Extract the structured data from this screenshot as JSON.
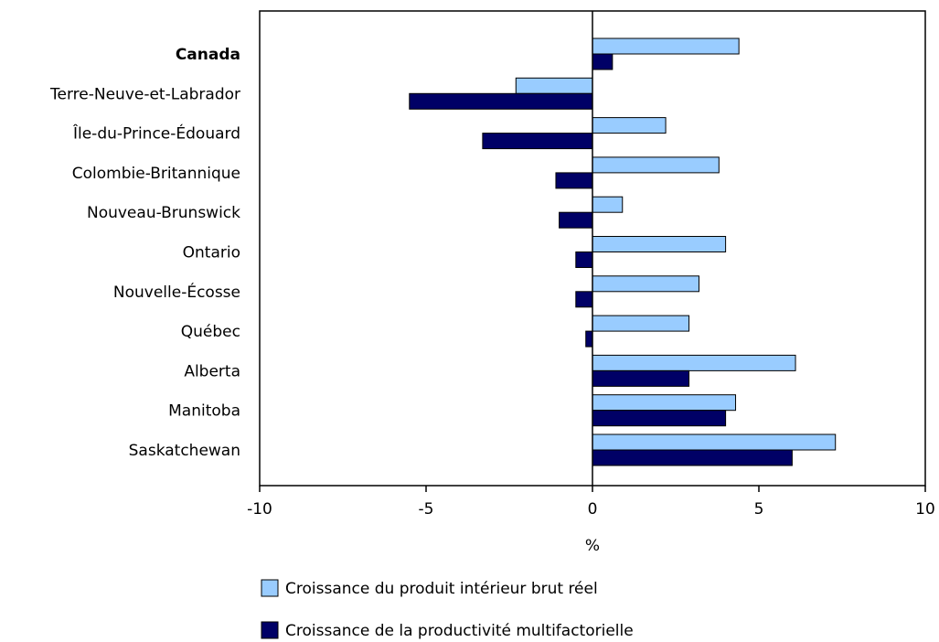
{
  "chart_data": {
    "type": "bar",
    "orientation": "horizontal",
    "title": "",
    "xlabel": "%",
    "ylabel": "",
    "xlim": [
      -10,
      10
    ],
    "x_ticks": [
      -10,
      -5,
      0,
      5,
      10
    ],
    "x_tick_labels": [
      "-10",
      "-5",
      "0",
      "5",
      "10"
    ],
    "grid": false,
    "legend_position": "bottom",
    "categories": [
      "Canada",
      "Terre-Neuve-et-Labrador",
      "Île-du-Prince-Édouard",
      "Colombie-Britannique",
      "Nouveau-Brunswick",
      "Ontario",
      "Nouvelle-Écosse",
      "Québec",
      "Alberta",
      "Manitoba",
      "Saskatchewan"
    ],
    "bold_categories": [
      "Canada"
    ],
    "series": [
      {
        "name": "Croissance du produit intérieur brut réel",
        "color": "#99ccff",
        "values": [
          4.4,
          -2.3,
          2.2,
          3.8,
          0.9,
          4.0,
          3.2,
          2.9,
          6.1,
          4.3,
          7.3
        ]
      },
      {
        "name": "Croissance de la productivité multifactorielle",
        "color": "#000066",
        "values": [
          0.6,
          -5.5,
          -3.3,
          -1.1,
          -1.0,
          -0.5,
          -0.5,
          -0.2,
          2.9,
          4.0,
          6.0
        ]
      }
    ]
  }
}
